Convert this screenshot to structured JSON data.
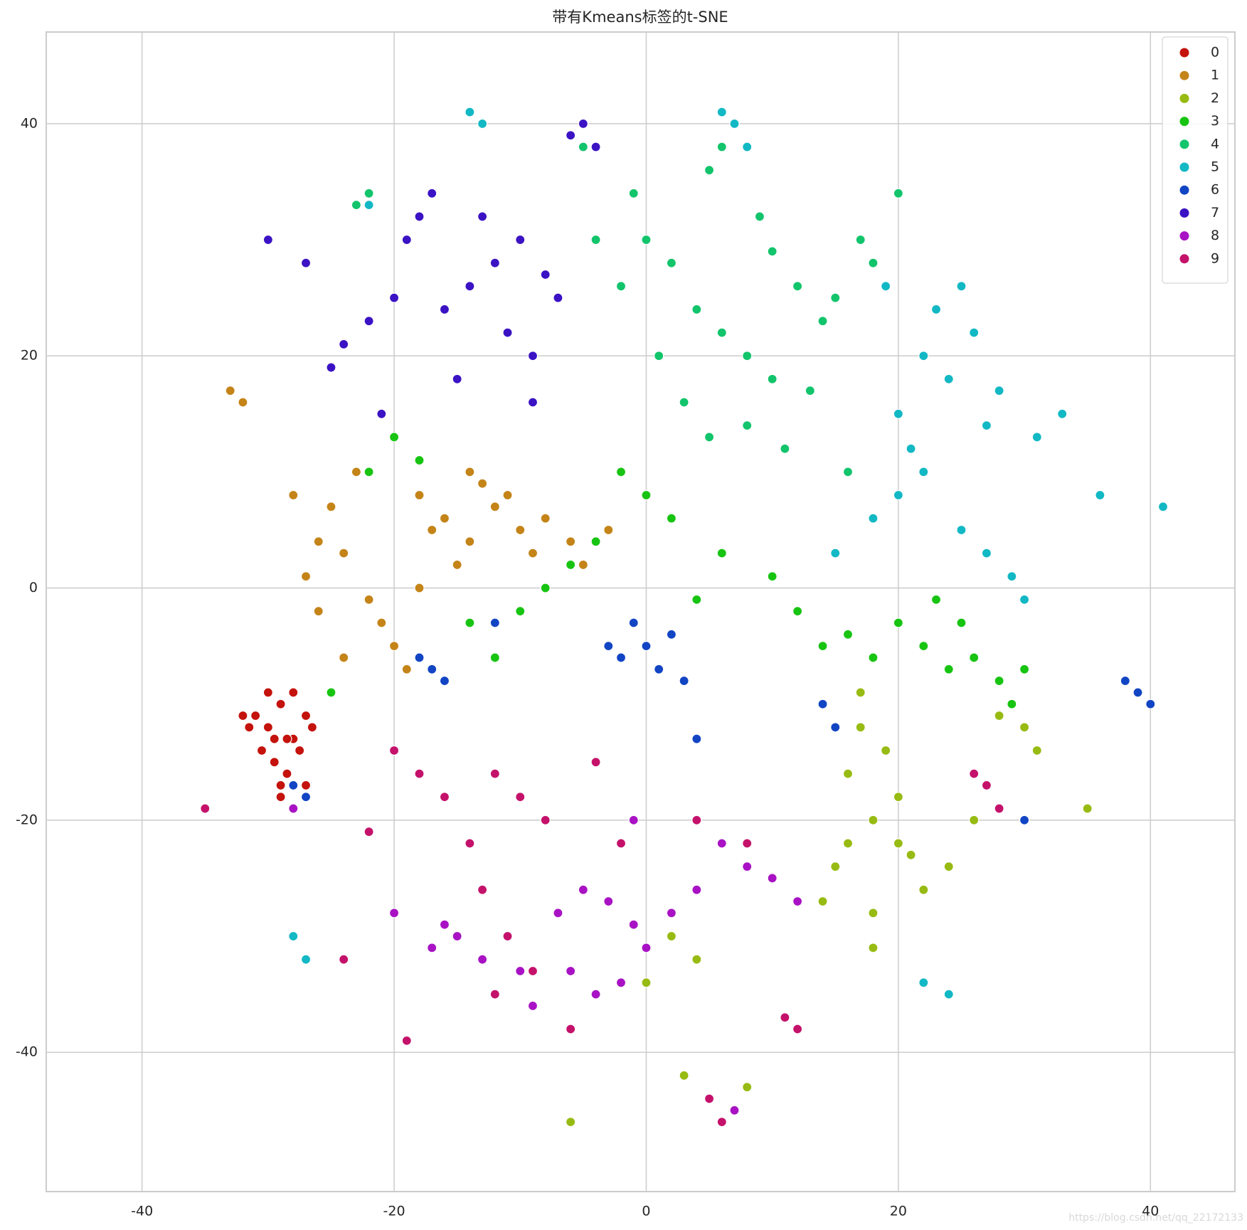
{
  "chart_data": {
    "type": "scatter",
    "title": "带有Kmeans标签的t-SNE",
    "xlim": [
      -47.6,
      46.7
    ],
    "ylim": [
      -52,
      47.9
    ],
    "xticks": [
      -40,
      -20,
      0,
      20,
      40
    ],
    "yticks": [
      -40,
      -20,
      0,
      20,
      40
    ],
    "grid": true,
    "legend": "upper right",
    "series": [
      {
        "name": "0",
        "color": "#c4120c",
        "x": [
          -31,
          -30,
          -29,
          -28,
          -27,
          -29.5,
          -28.5,
          -30.5,
          -27.5,
          -29,
          -28,
          -31.5,
          -26.5,
          -30,
          -28,
          -29,
          -27,
          -32,
          -28.5,
          -29.5
        ],
        "y": [
          -11,
          -12,
          -10,
          -13,
          -11,
          -15,
          -16,
          -14,
          -14,
          -18,
          -19,
          -12,
          -12,
          -9,
          -9,
          -17,
          -17,
          -11,
          -13,
          -13
        ]
      },
      {
        "name": "1",
        "color": "#c48418",
        "x": [
          -16,
          -14,
          -12,
          -18,
          -10,
          -15,
          -13,
          -17,
          -26,
          -25,
          -27,
          -24,
          -20,
          -21,
          -19,
          -22,
          -6,
          -5,
          -8,
          -33,
          -32,
          -11,
          -9,
          -23,
          -28,
          -3,
          -14,
          -18,
          -26,
          -24
        ],
        "y": [
          6,
          4,
          7,
          8,
          5,
          2,
          9,
          5,
          4,
          7,
          1,
          3,
          -5,
          -3,
          -7,
          -1,
          4,
          2,
          6,
          17,
          16,
          8,
          3,
          10,
          8,
          5,
          10,
          0,
          -2,
          -6
        ]
      },
      {
        "name": "2",
        "color": "#97bb12",
        "x": [
          18,
          16,
          20,
          17,
          19,
          15,
          21,
          18,
          22,
          30,
          31,
          28,
          18,
          17,
          2,
          4,
          0,
          8,
          7,
          14,
          24,
          26,
          35,
          3,
          -6,
          12,
          20,
          16
        ],
        "y": [
          -20,
          -22,
          -18,
          -12,
          -14,
          -24,
          -23,
          -28,
          -26,
          -12,
          -14,
          -11,
          -31,
          -9,
          -30,
          -32,
          -34,
          -43,
          -45,
          -27,
          -24,
          -20,
          -19,
          -42,
          -46,
          -38,
          -22,
          -16
        ]
      },
      {
        "name": "3",
        "color": "#18c412",
        "x": [
          22,
          20,
          24,
          26,
          28,
          30,
          23,
          25,
          -8,
          -6,
          -10,
          -4,
          0,
          2,
          -2,
          4,
          6,
          10,
          12,
          14,
          -20,
          -22,
          -18,
          -14,
          -12,
          16,
          18,
          27,
          29,
          -25
        ],
        "y": [
          -5,
          -3,
          -7,
          -6,
          -8,
          -7,
          -1,
          -3,
          0,
          2,
          -2,
          4,
          8,
          6,
          10,
          -1,
          3,
          1,
          -2,
          -5,
          13,
          10,
          11,
          -3,
          -6,
          -4,
          -6,
          3,
          -10,
          -9
        ]
      },
      {
        "name": "4",
        "color": "#12c46b",
        "x": [
          8,
          6,
          10,
          4,
          12,
          14,
          2,
          0,
          -2,
          6,
          7,
          5,
          8,
          15,
          17,
          3,
          -5,
          -22,
          -23,
          1,
          11,
          13,
          9,
          5,
          18,
          -4,
          -1,
          16,
          20,
          10
        ],
        "y": [
          20,
          22,
          18,
          24,
          26,
          23,
          28,
          30,
          26,
          38,
          40,
          36,
          14,
          25,
          30,
          16,
          38,
          34,
          33,
          20,
          12,
          17,
          32,
          13,
          28,
          30,
          34,
          10,
          34,
          29
        ]
      },
      {
        "name": "5",
        "color": "#12b8c4",
        "x": [
          24,
          22,
          26,
          20,
          28,
          23,
          25,
          21,
          27,
          7,
          8,
          6,
          27,
          25,
          29,
          30,
          20,
          18,
          22,
          -13,
          -14,
          -28,
          -27,
          22,
          24,
          36,
          41,
          -22,
          15,
          31,
          19,
          33
        ],
        "y": [
          18,
          20,
          22,
          15,
          17,
          24,
          26,
          12,
          14,
          40,
          38,
          41,
          3,
          5,
          1,
          -1,
          8,
          6,
          10,
          40,
          41,
          -30,
          -32,
          -34,
          -35,
          8,
          7,
          33,
          3,
          13,
          26,
          15
        ]
      },
      {
        "name": "6",
        "color": "#1245c4",
        "x": [
          0,
          2,
          -2,
          1,
          -1,
          3,
          -3,
          -17,
          -16,
          -18,
          39,
          38,
          40,
          -28,
          -27,
          14,
          15,
          4,
          -12,
          30
        ],
        "y": [
          -5,
          -4,
          -6,
          -7,
          -3,
          -8,
          -5,
          -7,
          -8,
          -6,
          -9,
          -8,
          -10,
          -17,
          -18,
          -10,
          -12,
          -13,
          -3,
          -20
        ]
      },
      {
        "name": "7",
        "color": "#3b12c4",
        "x": [
          -14,
          -12,
          -10,
          -16,
          -8,
          -11,
          -13,
          -9,
          -24,
          -22,
          -25,
          -20,
          -18,
          -17,
          -19,
          -5,
          -6,
          -4,
          -27,
          -15,
          -7,
          -30,
          -21,
          -9
        ],
        "y": [
          26,
          28,
          30,
          24,
          27,
          22,
          32,
          20,
          21,
          23,
          19,
          25,
          32,
          34,
          30,
          40,
          39,
          38,
          28,
          18,
          25,
          30,
          15,
          16
        ]
      },
      {
        "name": "8",
        "color": "#a812c4",
        "x": [
          -3,
          -1,
          -5,
          0,
          -7,
          -15,
          -17,
          -13,
          -16,
          8,
          6,
          10,
          -6,
          -4,
          -2,
          2,
          4,
          -10,
          -20,
          -28,
          12,
          7,
          -9,
          -1
        ],
        "y": [
          -27,
          -29,
          -26,
          -31,
          -28,
          -30,
          -31,
          -32,
          -29,
          -24,
          -22,
          -25,
          -33,
          -35,
          -34,
          -28,
          -26,
          -33,
          -28,
          -19,
          -27,
          -45,
          -36,
          -20
        ]
      },
      {
        "name": "9",
        "color": "#c4126b",
        "x": [
          -10,
          -8,
          -12,
          -14,
          -18,
          -20,
          -16,
          -11,
          -9,
          -12,
          -13,
          27,
          26,
          28,
          12,
          11,
          5,
          6,
          -6,
          -22,
          -2,
          -4,
          4,
          -35,
          -19,
          -24,
          8
        ],
        "y": [
          -18,
          -20,
          -16,
          -22,
          -16,
          -14,
          -18,
          -30,
          -33,
          -35,
          -26,
          -17,
          -16,
          -19,
          -38,
          -37,
          -44,
          -46,
          -38,
          -21,
          -22,
          -15,
          -20,
          -19,
          -39,
          -32,
          -22
        ]
      }
    ],
    "watermark": "https://blog.csdn.net/qq_22172133"
  }
}
